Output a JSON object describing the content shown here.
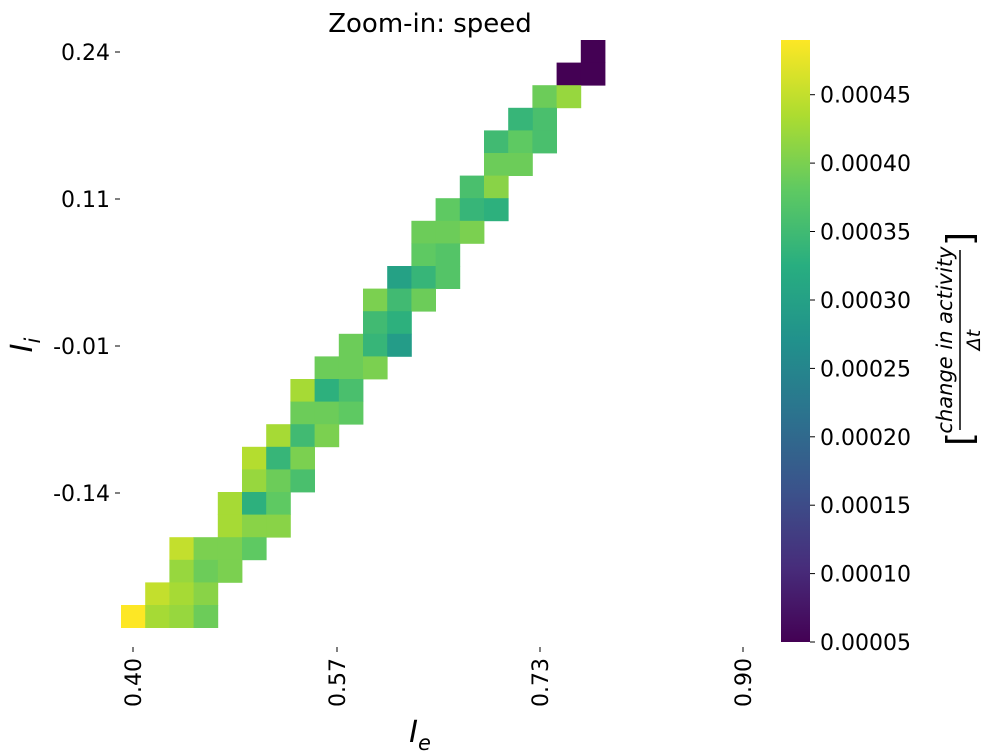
{
  "chart_data": {
    "type": "heatmap",
    "title": "Zoom-in: speed",
    "xlabel_base": "I",
    "xlabel_sub": "e",
    "ylabel_base": "I",
    "ylabel_sub": "i",
    "x_ticks": [
      0.4,
      0.57,
      0.73,
      0.9
    ],
    "x_tick_labels": [
      "0.40",
      "0.57",
      "0.73",
      "0.90"
    ],
    "y_ticks": [
      0.24,
      0.11,
      -0.01,
      -0.14
    ],
    "y_tick_labels": [
      "0.24",
      "0.11",
      "-0.01",
      "-0.14"
    ],
    "grid_columns": 25,
    "grid_rows": 25,
    "colorbar": {
      "label": "[change in activity / Δt]",
      "label_numerator": "change in activity",
      "label_denominator": "Δt",
      "range": [
        5e-05,
        0.00049
      ],
      "ticks": [
        5e-05,
        0.0001,
        0.00015,
        0.0002,
        0.00025,
        0.0003,
        0.00035,
        0.0004,
        0.00045
      ],
      "tick_labels": [
        "0.00005",
        "0.00010",
        "0.00015",
        "0.00020",
        "0.00025",
        "0.00030",
        "0.00035",
        "0.00040",
        "0.00045"
      ],
      "colormap": "viridis"
    },
    "cells": [
      [
        19,
        0,
        5e-05
      ],
      [
        18,
        1,
        5e-05
      ],
      [
        19,
        1,
        5e-05
      ],
      [
        17,
        2,
        0.00039
      ],
      [
        18,
        2,
        0.00042
      ],
      [
        17,
        3,
        0.00036
      ],
      [
        16,
        3,
        0.00034
      ],
      [
        15,
        4,
        0.00035
      ],
      [
        16,
        4,
        0.00038
      ],
      [
        17,
        4,
        0.00036
      ],
      [
        16,
        5,
        0.00039
      ],
      [
        15,
        5,
        0.00039
      ],
      [
        14,
        6,
        0.00036
      ],
      [
        15,
        6,
        0.00041
      ],
      [
        13,
        7,
        0.00038
      ],
      [
        14,
        7,
        0.00034
      ],
      [
        15,
        7,
        0.00033
      ],
      [
        12,
        8,
        0.00039
      ],
      [
        13,
        8,
        0.00039
      ],
      [
        14,
        8,
        0.0004
      ],
      [
        12,
        9,
        0.00038
      ],
      [
        13,
        9,
        0.00037
      ],
      [
        11,
        10,
        0.0003
      ],
      [
        12,
        10,
        0.00034
      ],
      [
        13,
        10,
        0.00037
      ],
      [
        10,
        11,
        0.0004
      ],
      [
        11,
        11,
        0.00035
      ],
      [
        12,
        11,
        0.00039
      ],
      [
        10,
        12,
        0.00035
      ],
      [
        11,
        12,
        0.00033
      ],
      [
        9,
        13,
        0.00039
      ],
      [
        10,
        13,
        0.00034
      ],
      [
        11,
        13,
        0.00029
      ],
      [
        8,
        14,
        0.00039
      ],
      [
        9,
        14,
        0.00039
      ],
      [
        10,
        14,
        0.0004
      ],
      [
        7,
        15,
        0.00043
      ],
      [
        8,
        15,
        0.00033
      ],
      [
        9,
        15,
        0.00036
      ],
      [
        7,
        16,
        0.00039
      ],
      [
        8,
        16,
        0.00039
      ],
      [
        9,
        16,
        0.00038
      ],
      [
        6,
        17,
        0.00043
      ],
      [
        7,
        17,
        0.00035
      ],
      [
        8,
        17,
        0.0004
      ],
      [
        5,
        18,
        0.00044
      ],
      [
        6,
        18,
        0.00034
      ],
      [
        7,
        18,
        0.0004
      ],
      [
        5,
        19,
        0.00042
      ],
      [
        6,
        19,
        0.00039
      ],
      [
        7,
        19,
        0.00036
      ],
      [
        4,
        20,
        0.00043
      ],
      [
        5,
        20,
        0.00033
      ],
      [
        6,
        20,
        0.00038
      ],
      [
        4,
        21,
        0.00043
      ],
      [
        5,
        21,
        0.00041
      ],
      [
        6,
        21,
        0.00041
      ],
      [
        2,
        22,
        0.00045
      ],
      [
        3,
        22,
        0.0004
      ],
      [
        4,
        22,
        0.0004
      ],
      [
        5,
        22,
        0.00038
      ],
      [
        2,
        23,
        0.00042
      ],
      [
        3,
        23,
        0.00039
      ],
      [
        4,
        23,
        0.0004
      ],
      [
        1,
        24,
        0.00045
      ],
      [
        2,
        24,
        0.00043
      ],
      [
        3,
        24,
        0.00041
      ],
      [
        0,
        25,
        0.00049
      ],
      [
        1,
        25,
        0.00043
      ],
      [
        2,
        25,
        0.00042
      ],
      [
        3,
        25,
        0.00039
      ]
    ]
  }
}
